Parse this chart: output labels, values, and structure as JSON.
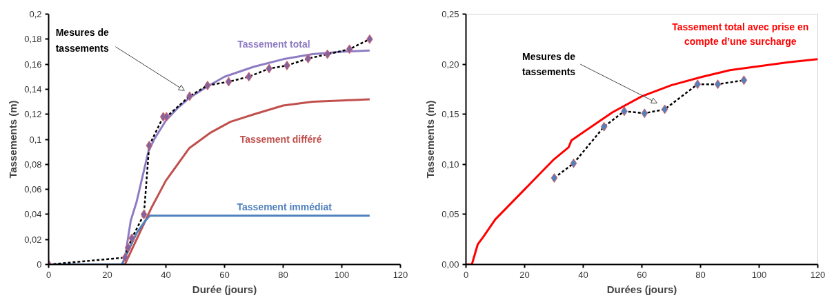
{
  "chart_data": [
    {
      "type": "line",
      "xlabel": "Durée (jours)",
      "ylabel": "Tassements (m)",
      "xlim": [
        0,
        120
      ],
      "ylim": [
        0,
        0.2
      ],
      "xticks": [
        0,
        20,
        40,
        60,
        80,
        100,
        120
      ],
      "yticks": [
        {
          "value": 0,
          "label": "0"
        },
        {
          "value": 0.02,
          "label": "0,02"
        },
        {
          "value": 0.04,
          "label": "0,04"
        },
        {
          "value": 0.06,
          "label": "0,06"
        },
        {
          "value": 0.08,
          "label": "0,08"
        },
        {
          "value": 0.1,
          "label": "0,1"
        },
        {
          "value": 0.12,
          "label": "0,12"
        },
        {
          "value": 0.14,
          "label": "0,14"
        },
        {
          "value": 0.16,
          "label": "0,16"
        },
        {
          "value": 0.18,
          "label": "0,18"
        },
        {
          "value": 0.2,
          "label": "0,2"
        }
      ],
      "grid": false,
      "annotations": [
        "Mesures de tassements"
      ],
      "series": [
        {
          "name": "Tassement total",
          "color": "#8e7cc3",
          "x": [
            0,
            25,
            26,
            28,
            30,
            32,
            34,
            36,
            40,
            44,
            48,
            54,
            60,
            70,
            80,
            90,
            100,
            109.5
          ],
          "values": [
            0,
            0,
            0.005,
            0.035,
            0.05,
            0.07,
            0.09,
            0.1,
            0.115,
            0.125,
            0.133,
            0.142,
            0.15,
            0.158,
            0.164,
            0.168,
            0.17,
            0.171
          ]
        },
        {
          "name": "Tassement différé",
          "color": "#c0504d",
          "x": [
            0,
            26,
            28,
            32,
            35,
            40,
            48,
            55,
            62,
            70,
            80,
            90,
            100,
            109.5
          ],
          "values": [
            0,
            0,
            0.01,
            0.03,
            0.045,
            0.067,
            0.093,
            0.105,
            0.114,
            0.12,
            0.127,
            0.13,
            0.131,
            0.132
          ]
        },
        {
          "name": "Tassement immédiat",
          "color": "#4f81bd",
          "x": [
            0,
            25,
            26,
            30,
            33,
            34.5,
            109.5
          ],
          "values": [
            0,
            0,
            0.005,
            0.025,
            0.035,
            0.039,
            0.039
          ]
        },
        {
          "color": "#000000",
          "line_style": "dashed",
          "x": [
            0,
            26.1,
            27.1,
            28.4,
            32.5,
            34.3,
            39.1,
            40.2,
            48.1,
            54.2,
            61.4,
            68.3,
            75.2,
            81.3,
            88.5,
            95.1,
            102.6,
            109.5
          ],
          "values": [
            0,
            0.0055,
            0.0135,
            0.021,
            0.04,
            0.095,
            0.118,
            0.118,
            0.1345,
            0.143,
            0.146,
            0.15,
            0.1565,
            0.159,
            0.1645,
            0.168,
            0.172,
            0.18
          ]
        },
        {
          "type": "scatter",
          "color": "#8064a2",
          "marker": "diamond",
          "x": [
            0,
            26.1,
            27.1,
            28.4,
            32.5,
            34.3,
            39.1,
            40.2,
            48.1,
            54.2,
            61.4,
            68.3,
            75.2,
            81.3,
            88.5,
            95.1,
            102.6,
            109.5
          ],
          "values": [
            0,
            0.0055,
            0.0135,
            0.021,
            0.04,
            0.095,
            0.118,
            0.118,
            0.1345,
            0.143,
            0.146,
            0.15,
            0.1565,
            0.159,
            0.1645,
            0.168,
            0.172,
            0.18
          ]
        }
      ]
    },
    {
      "type": "line",
      "xlabel": "Durées (jours)",
      "ylabel": "Tassements (m)",
      "xlim": [
        0,
        120
      ],
      "ylim": [
        0,
        0.25
      ],
      "xticks": [
        0,
        20,
        40,
        60,
        80,
        100,
        120
      ],
      "yticks": [
        {
          "value": 0,
          "label": "0,00"
        },
        {
          "value": 0.05,
          "label": "0,05"
        },
        {
          "value": 0.1,
          "label": "0,10"
        },
        {
          "value": 0.15,
          "label": "0,15"
        },
        {
          "value": 0.2,
          "label": "0,20"
        },
        {
          "value": 0.25,
          "label": "0,25"
        }
      ],
      "grid": false,
      "annotations": [
        "Mesures de tassements"
      ],
      "series": [
        {
          "name": "Tassement total avec prise en compte d’une surcharge",
          "color": "#ff0000",
          "x": [
            0,
            2,
            3,
            4,
            6,
            10,
            15,
            20,
            25,
            30,
            35,
            36,
            40,
            50,
            60,
            70,
            80,
            90,
            100,
            110,
            120
          ],
          "values": [
            0,
            0,
            0.01,
            0.02,
            0.028,
            0.045,
            0.06,
            0.075,
            0.09,
            0.105,
            0.117,
            0.124,
            0.132,
            0.152,
            0.168,
            0.179,
            0.187,
            0.194,
            0.198,
            0.202,
            0.205
          ]
        },
        {
          "color": "#000000",
          "line_style": "dashed",
          "x": [
            30.1,
            36.7,
            47.1,
            54.0,
            60.9,
            67.8,
            79.0,
            85.9,
            94.8
          ],
          "values": [
            0.0864,
            0.101,
            0.1376,
            0.153,
            0.151,
            0.155,
            0.18,
            0.18,
            0.184
          ]
        },
        {
          "type": "scatter",
          "color": "#4f81bd",
          "marker": "diamond",
          "x": [
            30.1,
            36.7,
            47.1,
            54.0,
            60.9,
            67.8,
            79.0,
            85.9,
            94.8
          ],
          "values": [
            0.0864,
            0.101,
            0.1376,
            0.153,
            0.151,
            0.155,
            0.18,
            0.18,
            0.184
          ]
        }
      ]
    }
  ]
}
